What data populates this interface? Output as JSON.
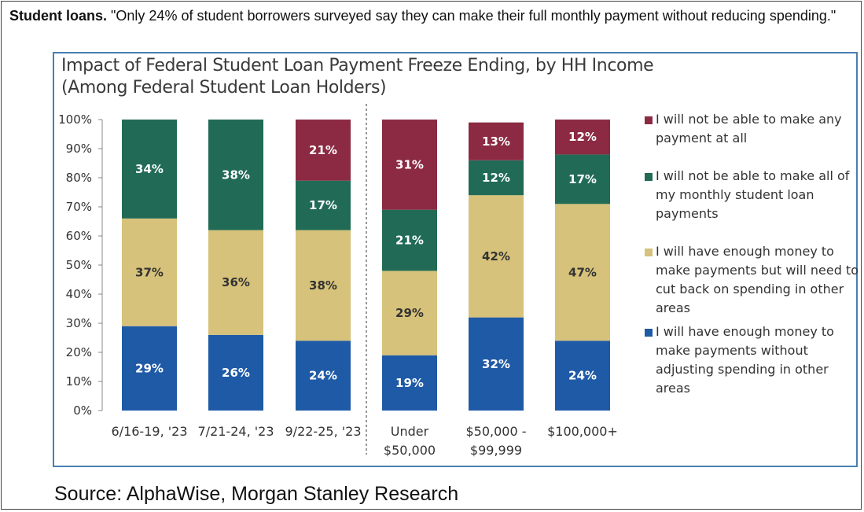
{
  "headline": {
    "bold": "Student loans.",
    "text": " \"Only 24% of student borrowers surveyed say they can make their full monthly payment without reducing spending.\""
  },
  "source": "Source: AlphaWise, Morgan Stanley Research",
  "chart_data": {
    "type": "bar",
    "stacked": true,
    "title": "Impact of Federal Student Loan Payment Freeze Ending, by HH Income (Among Federal Student Loan Holders)",
    "categories": [
      "6/16-19, '23",
      "7/21-24, '23",
      "9/22-25, '23",
      "Under $50,000",
      "$50,000 - $99,999",
      "$100,000+"
    ],
    "category_lines": [
      [
        "6/16-19, '23"
      ],
      [
        "7/21-24, '23"
      ],
      [
        "9/22-25, '23"
      ],
      [
        "Under",
        "$50,000"
      ],
      [
        "$50,000 -",
        "$99,999"
      ],
      [
        "$100,000+"
      ]
    ],
    "ylim": [
      0,
      100
    ],
    "y_ticks": [
      "0%",
      "10%",
      "20%",
      "30%",
      "40%",
      "50%",
      "60%",
      "70%",
      "80%",
      "90%",
      "100%"
    ],
    "legend_position": "right",
    "separator_after_category": 3,
    "series": [
      {
        "name": "I will have enough money to make payments without adjusting spending in other areas",
        "color": "#1f5aa6",
        "values": [
          29,
          26,
          24,
          19,
          32,
          24
        ],
        "labels": [
          "29%",
          "26%",
          "24%",
          "19%",
          "32%",
          "24%"
        ]
      },
      {
        "name": "I will have enough money to make payments but will need to cut back on spending in other areas",
        "color": "#d6c27a",
        "values": [
          37,
          36,
          38,
          29,
          42,
          47
        ],
        "labels": [
          "37%",
          "36%",
          "38%",
          "29%",
          "42%",
          "47%"
        ]
      },
      {
        "name": "I will not be able to make all of my monthly student loan payments",
        "color": "#216b56",
        "values": [
          34,
          38,
          17,
          21,
          12,
          17
        ],
        "labels": [
          "34%",
          "38%",
          "17%",
          "21%",
          "12%",
          "17%"
        ]
      },
      {
        "name": "I will not be able to make any payment at all",
        "color": "#8b2a42",
        "values": [
          0,
          0,
          21,
          31,
          13,
          12
        ],
        "labels": [
          "",
          "",
          "21%",
          "31%",
          "13%",
          "12%"
        ]
      }
    ],
    "legend": [
      {
        "series": 3,
        "lines": [
          "I will not be able to make any",
          "payment at all"
        ]
      },
      {
        "series": 2,
        "lines": [
          "I will not be able to make all of",
          "my monthly student loan",
          "payments"
        ]
      },
      {
        "series": 1,
        "lines": [
          "I will have enough money to",
          "make payments but will need to",
          "cut back on spending in other",
          "areas"
        ]
      },
      {
        "series": 0,
        "lines": [
          "I will have enough money to",
          "make payments without",
          "adjusting spending in other",
          "areas"
        ]
      }
    ]
  }
}
